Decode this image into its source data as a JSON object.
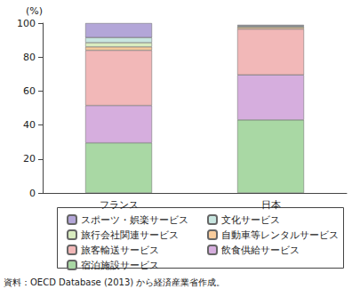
{
  "chart_data": {
    "type": "bar",
    "stacked": true,
    "ylabel": "(%)",
    "categories": [
      "フランス",
      "日本"
    ],
    "ylim": [
      0,
      100
    ],
    "yticks": [
      0,
      20,
      40,
      60,
      80,
      100
    ],
    "grid": false,
    "legend": "bottom",
    "annotations": [
      "資料：OECD Database (2013) から経済産業省作成。"
    ],
    "series": [
      {
        "name": "宿泊施設サービス",
        "color": "#a9d8a4",
        "values": [
          29.5,
          43
        ]
      },
      {
        "name": "飲食供給サービス",
        "color": "#d6aede",
        "values": [
          22,
          26.5
        ]
      },
      {
        "name": "旅客輸送サービス",
        "color": "#f2b8b8",
        "values": [
          32.5,
          27
        ]
      },
      {
        "name": "自動車等レンタルサービス",
        "color": "#f8cc9c",
        "values": [
          2,
          1
        ]
      },
      {
        "name": "旅行会社関連サービス",
        "color": "#d9ecc0",
        "values": [
          2.5,
          0.5
        ]
      },
      {
        "name": "文化サービス",
        "color": "#c8e6e0",
        "values": [
          3,
          0.5
        ]
      },
      {
        "name": "スポーツ・娯楽サービス",
        "color": "#b3a6d8",
        "values": [
          8.5,
          0.5
        ]
      }
    ]
  }
}
